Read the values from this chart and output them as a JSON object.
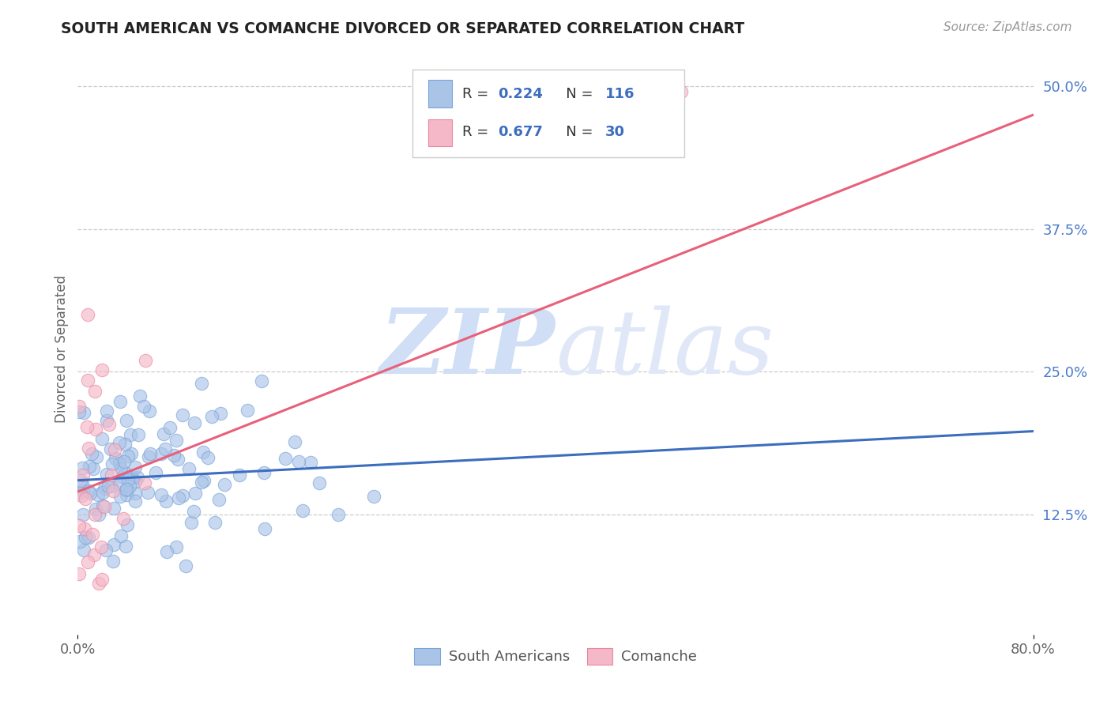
{
  "title": "SOUTH AMERICAN VS COMANCHE DIVORCED OR SEPARATED CORRELATION CHART",
  "source": "Source: ZipAtlas.com",
  "ylabel": "Divorced or Separated",
  "xlim": [
    0.0,
    0.8
  ],
  "ylim": [
    0.02,
    0.52
  ],
  "yticks": [
    0.125,
    0.25,
    0.375,
    0.5
  ],
  "ytick_labels": [
    "12.5%",
    "25.0%",
    "37.5%",
    "50.0%"
  ],
  "xticks": [
    0.0,
    0.8
  ],
  "xtick_labels": [
    "0.0%",
    "80.0%"
  ],
  "blue_R": 0.224,
  "blue_N": 116,
  "pink_R": 0.677,
  "pink_N": 30,
  "blue_color": "#aac4e8",
  "blue_edge_color": "#7aa4d8",
  "blue_line_color": "#3c6dbf",
  "pink_color": "#f5b8c8",
  "pink_edge_color": "#e888a0",
  "pink_line_color": "#e8607a",
  "watermark_zip": "ZIP",
  "watermark_atlas": "atlas",
  "watermark_color": "#d0dff5",
  "background_color": "#ffffff",
  "grid_color": "#cccccc",
  "title_color": "#222222",
  "source_color": "#999999",
  "legend_label_blue": "South Americans",
  "legend_label_pink": "Comanche",
  "blue_line_x": [
    0.0,
    0.8
  ],
  "blue_line_y": [
    0.155,
    0.198
  ],
  "pink_line_x": [
    0.0,
    0.8
  ],
  "pink_line_y": [
    0.145,
    0.475
  ],
  "axis_tick_color": "#4a7acc",
  "ylabel_color": "#666666"
}
